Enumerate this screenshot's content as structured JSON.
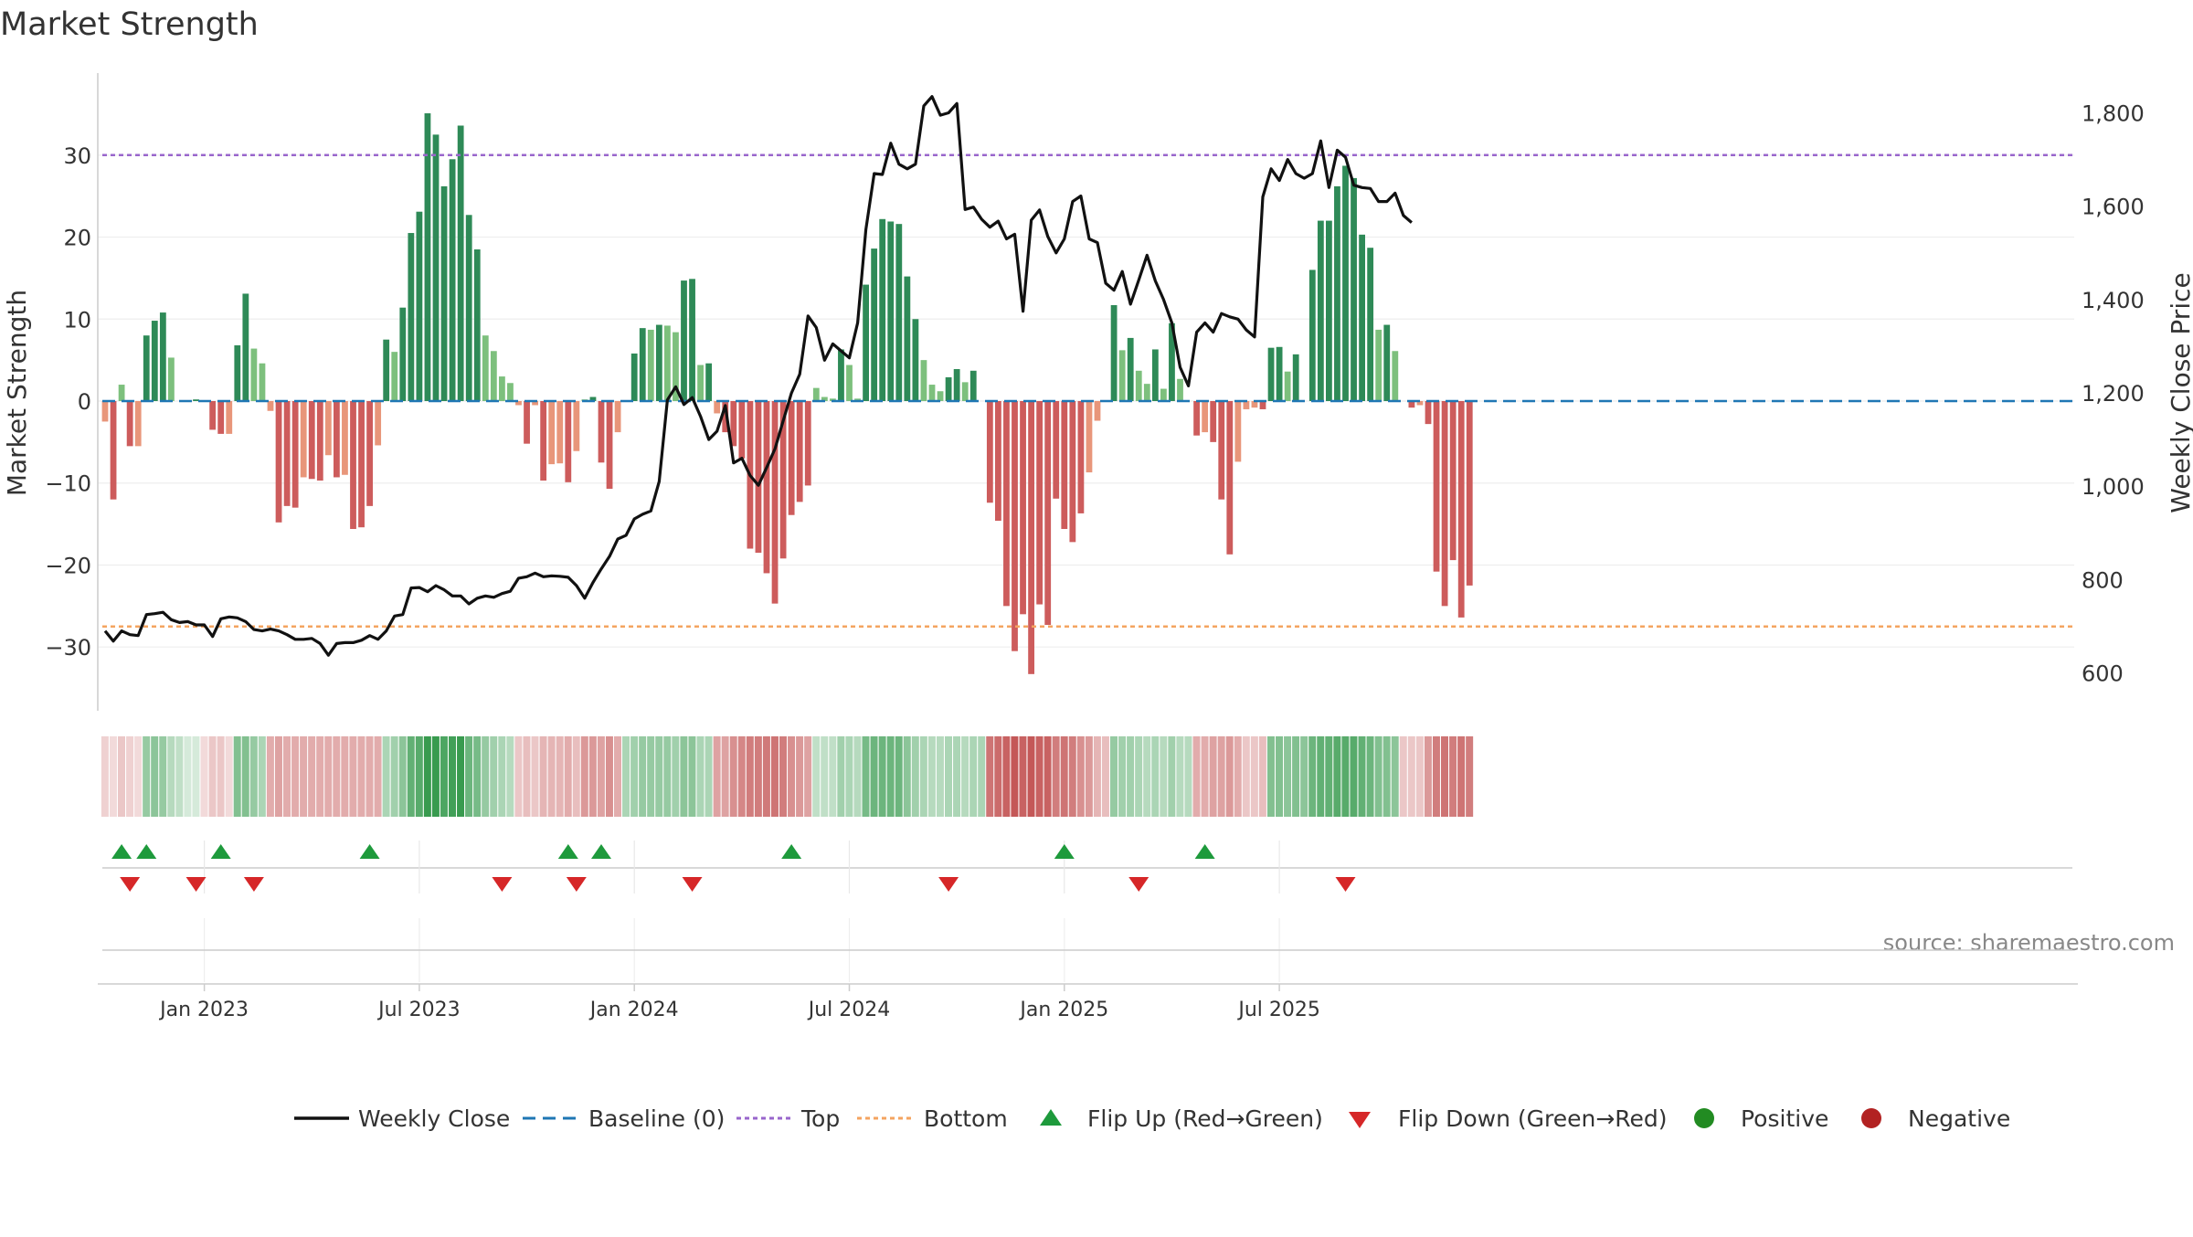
{
  "chart_data": {
    "type": "bar",
    "title": "Market Strength",
    "ylabel_left": "Market Strength",
    "ylabel_right": "Weekly Close Price",
    "source": "source: sharemaestro.com",
    "ylim_left": [
      -38,
      38
    ],
    "yticks_left": [
      30,
      20,
      10,
      0,
      -10,
      -20,
      -30
    ],
    "ytick_labels_left": [
      "30",
      "20",
      "10",
      "0",
      "−10",
      "−20",
      "−30"
    ],
    "ylim_right": [
      515,
      1850
    ],
    "yticks_right": [
      1800,
      1600,
      1400,
      1200,
      1000,
      800,
      600
    ],
    "ytick_labels_right": [
      "1,800",
      "1,600",
      "1,400",
      "1,200",
      "1,000",
      "800",
      "600"
    ],
    "top_line": 30,
    "bottom_line": -27.5,
    "x_dates": [
      "2022-10-10",
      "2022-10-17",
      "2022-10-24",
      "2022-10-31",
      "2022-11-07",
      "2022-11-14",
      "2022-11-21",
      "2022-11-28",
      "2022-12-05",
      "2022-12-12",
      "2022-12-19",
      "2022-12-26",
      "2023-01-02",
      "2023-01-09",
      "2023-01-16",
      "2023-01-23",
      "2023-01-30",
      "2023-02-06",
      "2023-02-13",
      "2023-02-20",
      "2023-02-27",
      "2023-03-06",
      "2023-03-13",
      "2023-03-20",
      "2023-03-27",
      "2023-04-03",
      "2023-04-10",
      "2023-04-17",
      "2023-04-24",
      "2023-05-01",
      "2023-05-08",
      "2023-05-15",
      "2023-05-22",
      "2023-05-29",
      "2023-06-05",
      "2023-06-12",
      "2023-06-19",
      "2023-06-26",
      "2023-07-03",
      "2023-07-10",
      "2023-07-17",
      "2023-07-24",
      "2023-07-31",
      "2023-08-07",
      "2023-08-14",
      "2023-08-21",
      "2023-08-28",
      "2023-09-04",
      "2023-09-11",
      "2023-09-18",
      "2023-09-25",
      "2023-10-02",
      "2023-10-09",
      "2023-10-16",
      "2023-10-23",
      "2023-10-30",
      "2023-11-06",
      "2023-11-13",
      "2023-11-20",
      "2023-11-27",
      "2023-12-04",
      "2023-12-11",
      "2023-12-18",
      "2023-12-25",
      "2024-01-01",
      "2024-01-08",
      "2024-01-15",
      "2024-01-22",
      "2024-01-29",
      "2024-02-05",
      "2024-02-12",
      "2024-02-19",
      "2024-02-26",
      "2024-03-04",
      "2024-03-11",
      "2024-03-18",
      "2024-03-25",
      "2024-04-01",
      "2024-04-08",
      "2024-04-15",
      "2024-04-22",
      "2024-04-29",
      "2024-05-06",
      "2024-05-13",
      "2024-05-20",
      "2024-05-27",
      "2024-06-03",
      "2024-06-10",
      "2024-06-17",
      "2024-06-24",
      "2024-07-01",
      "2024-07-08",
      "2024-07-15",
      "2024-07-22",
      "2024-07-29",
      "2024-08-05",
      "2024-08-12",
      "2024-08-19",
      "2024-08-26",
      "2024-09-02",
      "2024-09-09",
      "2024-09-16",
      "2024-09-23",
      "2024-09-30",
      "2024-10-07",
      "2024-10-14",
      "2024-10-21",
      "2024-10-28",
      "2024-11-04",
      "2024-11-11",
      "2024-11-18",
      "2024-11-25",
      "2024-12-02",
      "2024-12-09",
      "2024-12-16",
      "2024-12-23",
      "2024-12-30",
      "2025-01-06",
      "2025-01-13",
      "2025-01-20",
      "2025-01-27",
      "2025-02-03",
      "2025-02-10",
      "2025-02-17",
      "2025-02-24",
      "2025-03-03",
      "2025-03-10",
      "2025-03-17",
      "2025-03-24",
      "2025-03-31",
      "2025-04-07",
      "2025-04-14",
      "2025-04-21",
      "2025-04-28",
      "2025-05-05",
      "2025-05-12",
      "2025-05-19",
      "2025-05-26",
      "2025-06-02",
      "2025-06-09",
      "2025-06-16",
      "2025-06-23",
      "2025-06-30",
      "2025-07-07",
      "2025-07-14",
      "2025-07-21",
      "2025-07-28",
      "2025-08-04",
      "2025-08-11",
      "2025-08-18",
      "2025-08-25",
      "2025-09-01",
      "2025-09-08",
      "2025-09-15",
      "2025-09-22"
    ],
    "x_tick_labels": [
      "Jan 2023",
      "Jul 2023",
      "Jan 2024",
      "Jul 2024",
      "Jan 2025",
      "Jul 2025"
    ],
    "x_tick_index": [
      12,
      38,
      64,
      90,
      116,
      142
    ],
    "strength": [
      -2.5,
      -12,
      2,
      -5.5,
      -5.5,
      8,
      9.8,
      10.8,
      5.3,
      0,
      0,
      0.2,
      0,
      -3.5,
      -4,
      -4,
      6.8,
      13.1,
      6.4,
      4.6,
      -1.2,
      -14.8,
      -12.8,
      -13,
      -9.3,
      -9.5,
      -9.7,
      -6.6,
      -9.3,
      -9,
      -15.6,
      -15.4,
      -12.8,
      -5.4,
      7.5,
      6,
      11.4,
      20.5,
      23.1,
      35.1,
      32.5,
      26.2,
      29.5,
      33.6,
      22.7,
      18.5,
      8,
      6.1,
      3,
      2.2,
      -0.5,
      -5.2,
      -0.5,
      -9.7,
      -7.7,
      -7.6,
      -9.9,
      -6.1,
      0.2,
      0.5,
      -7.5,
      -10.7,
      -3.8,
      0,
      5.8,
      8.9,
      8.7,
      9.3,
      9.2,
      8.4,
      14.7,
      14.9,
      4.4,
      4.6,
      -1.5,
      -3.8,
      -5.5,
      -7,
      -18,
      -18.5,
      -21,
      -24.7,
      -19.2,
      -13.9,
      -12.3,
      -10.3,
      1.6,
      0.5,
      0.3,
      6.3,
      4.4,
      0.3,
      14.2,
      18.6,
      22.2,
      21.9,
      21.6,
      15.2,
      10,
      5,
      2,
      1.2,
      2.9,
      3.9,
      2.3,
      3.7,
      0,
      -12.4,
      -14.6,
      -25,
      -30.5,
      -26,
      -33.3,
      -24.8,
      -27.3,
      -11.9,
      -15.6,
      -17.2,
      -13.7,
      -8.7,
      -2.4,
      0,
      11.7,
      6.2,
      7.7,
      3.7,
      2.1,
      6.3,
      1.5,
      9.5,
      2.7,
      0,
      -4.2,
      -3.8,
      -5,
      -12,
      -18.7,
      -7.4,
      -1,
      -0.8,
      -1,
      6.5,
      6.6,
      3.6,
      5.7,
      0,
      16,
      22,
      22,
      26.2,
      28.7,
      27.2,
      20.3,
      18.7,
      8.7,
      9.3,
      6.1,
      0,
      -0.8,
      -0.5,
      -2.8,
      -20.8,
      -25,
      -19.4,
      -26.4,
      -22.5
    ],
    "weekly_close": [
      690,
      668,
      690,
      682,
      680,
      725,
      727,
      730,
      714,
      708,
      710,
      703,
      703,
      678,
      716,
      720,
      718,
      710,
      693,
      690,
      694,
      690,
      682,
      672,
      672,
      674,
      663,
      638,
      663,
      665,
      665,
      670,
      680,
      672,
      690,
      722,
      725,
      782,
      783,
      774,
      787,
      778,
      765,
      765,
      748,
      760,
      765,
      762,
      770,
      775,
      803,
      806,
      814,
      806,
      808,
      807,
      805,
      787,
      760,
      794,
      823,
      850,
      887,
      895,
      930,
      940,
      947,
      1010,
      1185,
      1213,
      1175,
      1190,
      1150,
      1100,
      1118,
      1173,
      1050,
      1060,
      1023,
      1002,
      1040,
      1080,
      1140,
      1200,
      1240,
      1365,
      1340,
      1270,
      1305,
      1290,
      1275,
      1350,
      1550,
      1670,
      1668,
      1735,
      1690,
      1680,
      1690,
      1815,
      1835,
      1795,
      1800,
      1820,
      1593,
      1598,
      1572,
      1555,
      1568,
      1530,
      1540,
      1375,
      1570,
      1592,
      1535,
      1500,
      1530,
      1610,
      1622,
      1530,
      1522,
      1435,
      1420,
      1460,
      1390,
      1442,
      1495,
      1440,
      1400,
      1350,
      1255,
      1215,
      1330,
      1350,
      1330,
      1370,
      1363,
      1358,
      1335,
      1320,
      1620,
      1680,
      1655,
      1700,
      1670,
      1660,
      1670,
      1740,
      1640,
      1720,
      1705,
      1645,
      1640,
      1638,
      1610,
      1610,
      1628,
      1580,
      1565
    ],
    "heat_strip": [
      -0.25,
      -0.2,
      -0.3,
      -0.25,
      -0.2,
      0.5,
      0.55,
      0.5,
      0.35,
      0.3,
      0.2,
      0.2,
      -0.2,
      -0.3,
      -0.3,
      -0.2,
      0.6,
      0.6,
      0.5,
      0.4,
      -0.45,
      -0.5,
      -0.45,
      -0.45,
      -0.45,
      -0.45,
      -0.45,
      -0.45,
      -0.45,
      -0.45,
      -0.45,
      -0.45,
      -0.45,
      -0.45,
      0.4,
      0.45,
      0.55,
      0.75,
      0.8,
      0.95,
      0.95,
      0.85,
      0.9,
      0.95,
      0.7,
      0.65,
      0.5,
      0.45,
      0.4,
      0.35,
      -0.3,
      -0.35,
      -0.3,
      -0.4,
      -0.4,
      -0.4,
      -0.45,
      -0.35,
      -0.55,
      -0.55,
      -0.5,
      -0.6,
      -0.45,
      0.4,
      0.45,
      0.5,
      0.5,
      0.5,
      0.5,
      0.45,
      0.55,
      0.55,
      0.4,
      0.4,
      -0.5,
      -0.5,
      -0.6,
      -0.65,
      -0.7,
      -0.7,
      -0.72,
      -0.75,
      -0.7,
      -0.6,
      -0.55,
      -0.5,
      0.3,
      0.3,
      0.3,
      0.45,
      0.4,
      0.35,
      0.65,
      0.7,
      0.7,
      0.7,
      0.7,
      0.55,
      0.45,
      0.4,
      0.35,
      0.35,
      0.4,
      0.4,
      0.35,
      0.4,
      0.4,
      -0.75,
      -0.8,
      -0.85,
      -0.9,
      -0.85,
      -0.9,
      -0.85,
      -0.85,
      -0.7,
      -0.75,
      -0.7,
      -0.6,
      -0.55,
      -0.4,
      -0.35,
      0.5,
      0.45,
      0.45,
      0.4,
      0.35,
      0.4,
      0.35,
      0.45,
      0.35,
      0.35,
      -0.45,
      -0.45,
      -0.5,
      -0.5,
      -0.55,
      -0.45,
      -0.3,
      -0.3,
      -0.35,
      0.6,
      0.6,
      0.55,
      0.6,
      0.55,
      0.7,
      0.75,
      0.75,
      0.8,
      0.8,
      0.8,
      0.75,
      0.7,
      0.6,
      0.6,
      0.55,
      -0.3,
      -0.3,
      -0.3,
      -0.55,
      -0.7,
      -0.75,
      -0.7,
      -0.75,
      -0.7
    ],
    "flip_up_index": [
      2,
      5,
      14,
      32,
      56,
      60,
      83,
      116,
      133
    ],
    "flip_down_index": [
      3,
      11,
      18,
      48,
      57,
      71,
      102,
      125,
      150
    ],
    "legend": [
      "Weekly Close",
      "Baseline (0)",
      "Top",
      "Bottom",
      "Flip Up (Red→Green)",
      "Flip Down (Green→Red)",
      "Positive",
      "Negative"
    ],
    "colors": {
      "strong_green": "#2e8a57",
      "light_green": "#7dc07d",
      "strong_red": "#cd5c5c",
      "light_red": "#e8967a",
      "close_line": "#111111",
      "baseline": "#1f77b4",
      "top_line": "#9966cc",
      "bottom_line": "#f4a460",
      "flip_up": "#1e9a3c",
      "flip_down": "#d62728",
      "positive_dot": "#228b22",
      "negative_dot": "#b22222"
    }
  }
}
